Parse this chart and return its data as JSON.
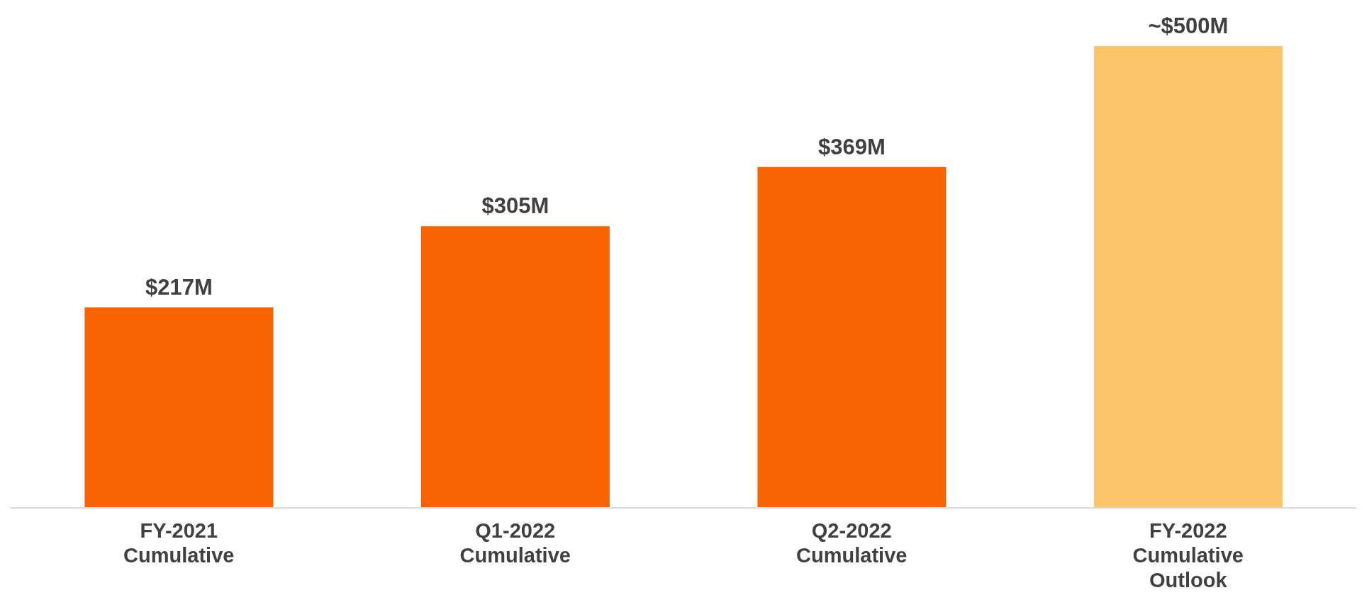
{
  "chart_data": {
    "type": "bar",
    "categories": [
      "FY-2021 Cumulative",
      "Q1-2022 Cumulative",
      "Q2-2022 Cumulative",
      "FY-2022 Cumulative Outlook"
    ],
    "values": [
      217,
      305,
      369,
      500
    ],
    "colors": [
      "#f96302",
      "#f96302",
      "#f96302",
      "#fdc56a"
    ],
    "value_labels": [
      "$217M",
      "$305M",
      "$369M",
      "~$500M"
    ]
  }
}
